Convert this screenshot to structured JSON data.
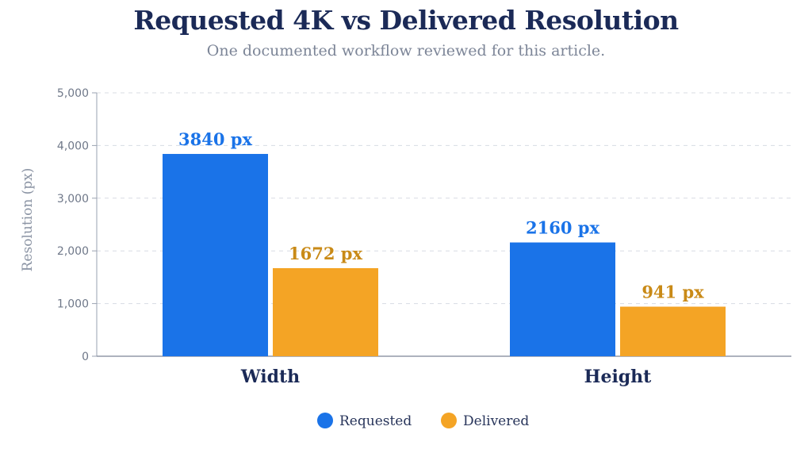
{
  "title": "Requested 4K vs Delivered Resolution",
  "subtitle": "One documented workflow reviewed for this article.",
  "chart_data": {
    "type": "bar",
    "title": "Requested 4K vs Delivered Resolution",
    "subtitle": "One documented workflow reviewed for this article.",
    "xlabel": "",
    "ylabel": "Resolution (px)",
    "categories": [
      "Width",
      "Height"
    ],
    "series": [
      {
        "name": "Requested",
        "values": [
          3840,
          2160
        ],
        "color": "#1a73e8",
        "labels": [
          "3840 px",
          "2160 px"
        ]
      },
      {
        "name": "Delivered",
        "values": [
          1672,
          941
        ],
        "color": "#f4a425",
        "labels": [
          "1672 px",
          "941 px"
        ]
      }
    ],
    "ylim": [
      0,
      5000
    ],
    "yticks": [
      0,
      1000,
      2000,
      3000,
      4000,
      5000
    ],
    "ytick_labels": [
      "0",
      "1,000",
      "2,000",
      "3,000",
      "4,000",
      "5,000"
    ],
    "label_colors": [
      "#1a73e8",
      "#c98a17"
    ],
    "grid": true,
    "legend_position": "bottom-center"
  }
}
